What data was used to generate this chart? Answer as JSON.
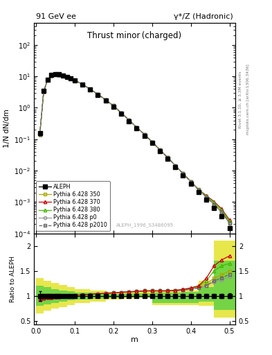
{
  "title_left": "91 GeV ee",
  "title_right": "γ*/Z (Hadronic)",
  "plot_title": "Thrust minor (charged)",
  "xlabel": "m",
  "ylabel_main": "1/N dN/dm",
  "ylabel_ratio": "Ratio to ALEPH",
  "watermark": "ALEPH_1996_S3486095",
  "right_label_top": "Rivet 3.1.10, ≥ 3.3M events",
  "right_label_bot": "mcplots.cern.ch [arXiv:1306.3436]",
  "x_data": [
    0.01,
    0.02,
    0.03,
    0.04,
    0.05,
    0.06,
    0.07,
    0.08,
    0.09,
    0.1,
    0.12,
    0.14,
    0.16,
    0.18,
    0.2,
    0.22,
    0.24,
    0.26,
    0.28,
    0.3,
    0.32,
    0.34,
    0.36,
    0.38,
    0.4,
    0.42,
    0.44,
    0.46,
    0.48,
    0.5
  ],
  "aleph_y": [
    0.155,
    3.5,
    8.0,
    11.0,
    12.0,
    11.5,
    10.5,
    9.5,
    8.5,
    7.5,
    5.5,
    3.8,
    2.6,
    1.7,
    1.1,
    0.65,
    0.38,
    0.22,
    0.13,
    0.075,
    0.042,
    0.024,
    0.013,
    0.0072,
    0.0039,
    0.0021,
    0.0012,
    0.00065,
    0.00035,
    0.00015
  ],
  "aleph_yerr": [
    0.015,
    0.15,
    0.3,
    0.4,
    0.4,
    0.35,
    0.3,
    0.25,
    0.22,
    0.2,
    0.15,
    0.1,
    0.07,
    0.05,
    0.03,
    0.018,
    0.011,
    0.007,
    0.004,
    0.0025,
    0.0014,
    0.0008,
    0.00045,
    0.00025,
    0.00013,
    7e-05,
    4e-05,
    2.5e-05,
    1.5e-05,
    7e-06
  ],
  "r350": [
    0.93,
    0.95,
    0.97,
    0.97,
    0.98,
    0.98,
    0.99,
    1.0,
    1.0,
    1.01,
    1.02,
    1.03,
    1.04,
    1.05,
    1.06,
    1.07,
    1.08,
    1.09,
    1.1,
    1.1,
    1.1,
    1.1,
    1.11,
    1.12,
    1.14,
    1.18,
    1.25,
    1.35,
    1.42,
    1.5
  ],
  "r370": [
    0.93,
    0.95,
    0.97,
    0.97,
    0.98,
    0.98,
    0.99,
    1.0,
    1.0,
    1.01,
    1.02,
    1.03,
    1.04,
    1.05,
    1.06,
    1.07,
    1.08,
    1.09,
    1.1,
    1.1,
    1.1,
    1.1,
    1.11,
    1.13,
    1.16,
    1.2,
    1.35,
    1.6,
    1.72,
    1.8
  ],
  "r380": [
    0.93,
    0.95,
    0.97,
    0.97,
    0.98,
    0.98,
    0.99,
    1.0,
    1.0,
    1.01,
    1.02,
    1.03,
    1.04,
    1.05,
    1.06,
    1.07,
    1.08,
    1.09,
    1.1,
    1.1,
    1.1,
    1.1,
    1.11,
    1.12,
    1.15,
    1.19,
    1.3,
    1.5,
    1.6,
    1.65
  ],
  "rp0": [
    0.93,
    0.95,
    0.97,
    0.97,
    0.98,
    0.98,
    0.99,
    1.0,
    1.0,
    1.01,
    1.02,
    1.03,
    1.04,
    1.05,
    1.06,
    1.07,
    1.08,
    1.09,
    1.1,
    1.1,
    1.1,
    1.1,
    1.1,
    1.11,
    1.13,
    1.16,
    1.2,
    1.28,
    1.32,
    1.38
  ],
  "rp2010": [
    0.93,
    0.95,
    0.97,
    0.97,
    0.98,
    0.98,
    0.99,
    1.0,
    1.0,
    1.01,
    1.02,
    1.03,
    1.04,
    1.05,
    1.06,
    1.07,
    1.08,
    1.09,
    1.1,
    1.1,
    1.1,
    1.1,
    1.1,
    1.12,
    1.13,
    1.16,
    1.21,
    1.3,
    1.36,
    1.43
  ],
  "color_350": "#aaaa00",
  "color_370": "#cc0000",
  "color_380": "#44bb00",
  "color_p0": "#999999",
  "color_p2010": "#666666",
  "ylim_main": [
    0.0001,
    500
  ],
  "ylim_ratio": [
    0.42,
    2.25
  ],
  "xlim": [
    -0.005,
    0.515
  ],
  "band_y_edges": [
    0.0,
    0.02,
    0.04,
    0.06,
    0.08,
    0.1,
    0.14,
    0.18,
    0.22,
    0.26,
    0.3,
    0.34,
    0.38,
    0.42,
    0.46,
    0.515
  ],
  "band_y_lo": [
    0.65,
    0.7,
    0.74,
    0.78,
    0.82,
    0.86,
    0.89,
    0.92,
    0.94,
    0.95,
    0.82,
    0.82,
    0.82,
    0.8,
    0.56,
    0.44
  ],
  "band_y_hi": [
    1.35,
    1.3,
    1.26,
    1.22,
    1.18,
    1.14,
    1.11,
    1.08,
    1.08,
    1.09,
    1.09,
    1.09,
    1.1,
    1.3,
    2.1,
    2.2
  ],
  "band_g_edges": [
    0.0,
    0.02,
    0.04,
    0.06,
    0.08,
    0.1,
    0.14,
    0.18,
    0.22,
    0.26,
    0.3,
    0.34,
    0.38,
    0.42,
    0.46,
    0.515
  ],
  "band_g_lo": [
    0.8,
    0.83,
    0.86,
    0.89,
    0.91,
    0.93,
    0.94,
    0.96,
    0.97,
    0.97,
    0.86,
    0.86,
    0.86,
    0.88,
    0.72,
    0.6
  ],
  "band_g_hi": [
    1.2,
    1.17,
    1.14,
    1.11,
    1.09,
    1.07,
    1.06,
    1.04,
    1.05,
    1.05,
    1.06,
    1.06,
    1.08,
    1.18,
    1.7,
    1.85
  ]
}
